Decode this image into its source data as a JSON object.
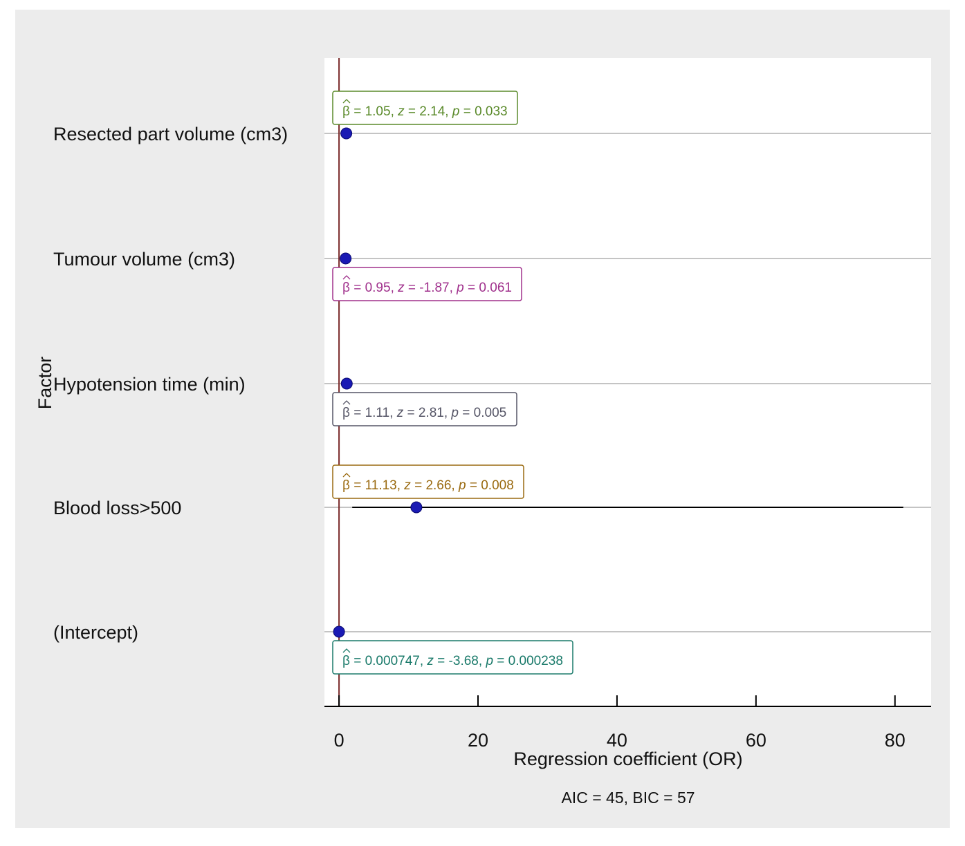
{
  "chart_data": {
    "type": "forest",
    "ylabel": "Factor",
    "xlabel": "Regression coefficient (OR)",
    "xlim": [
      -2.1,
      85.2
    ],
    "xticks": [
      0,
      20,
      40,
      60,
      80
    ],
    "reference_line": 0,
    "footer": "AIC = 45, BIC = 57",
    "factors": [
      {
        "label": "Resected part volume (cm3)",
        "estimate": 1.05,
        "z": "2.14",
        "p": "0.033",
        "estimate_text": "1.05",
        "ci": null,
        "annotation_position": "above",
        "color": "#5a8a2a"
      },
      {
        "label": "Tumour volume (cm3)",
        "estimate": 0.95,
        "z": "-1.87",
        "p": "0.061",
        "estimate_text": "0.95",
        "ci": null,
        "annotation_position": "below",
        "color": "#a0308c"
      },
      {
        "label": "Hypotension time (min)",
        "estimate": 1.11,
        "z": "2.81",
        "p": "0.005",
        "estimate_text": "1.11",
        "ci": null,
        "annotation_position": "below",
        "color": "#555566"
      },
      {
        "label": "Blood loss>500",
        "estimate": 11.13,
        "z": "2.66",
        "p": "0.008",
        "estimate_text": "11.13",
        "ci": [
          1.9,
          81.2
        ],
        "annotation_position": "above",
        "color": "#9a6a10"
      },
      {
        "label": "(Intercept)",
        "estimate": 0.000747,
        "z": "-3.68",
        "p": "0.000238",
        "estimate_text": "0.000747",
        "ci": null,
        "annotation_position": "below",
        "color": "#1a7a6a"
      }
    ]
  }
}
